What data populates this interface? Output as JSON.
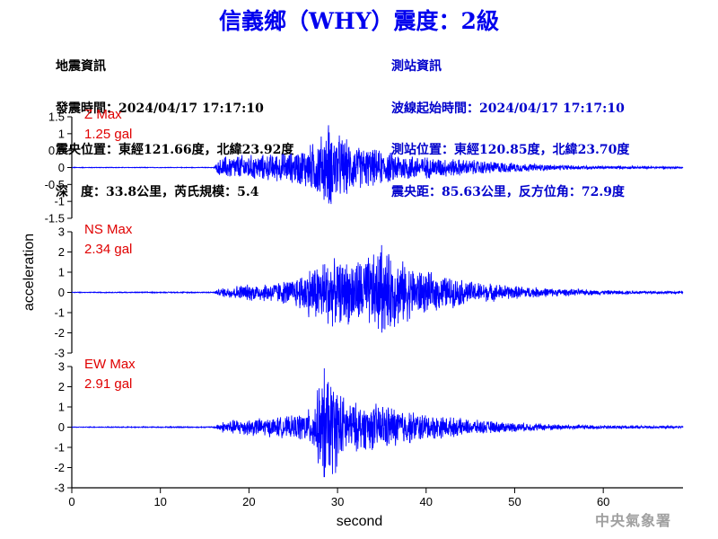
{
  "page": {
    "title": "信義鄉（WHY）震度：2級",
    "footer": "中央氣象署"
  },
  "info_left": {
    "line1": "地震資訊",
    "line2": "發震時間：2024/04/17 17:17:10",
    "line3": "震央位置：東經121.66度，北緯23.92度",
    "line4": "深　度：33.8公里，芮氏規模：5.4"
  },
  "info_right": {
    "line1": "測站資訊",
    "line2": "波線起始時間：2024/04/17 17:17:10",
    "line3": "測站位置：東經120.85度，北緯23.70度",
    "line4": "震央距：85.63公里，反方位角：72.9度"
  },
  "colors": {
    "trace": "#0000ff",
    "max_label": "#e00000",
    "title": "#0000ee",
    "station_info": "#0000cc"
  },
  "chart_data": {
    "type": "line",
    "xlabel": "second",
    "ylabel": "acceleration",
    "xlim": [
      0,
      69
    ],
    "x_ticks": [
      0,
      10,
      20,
      30,
      40,
      50,
      60
    ],
    "grid": false,
    "panels": [
      {
        "component": "Z",
        "label": "Z Max",
        "max_text": "1.25 gal",
        "max_value": 1.25,
        "ylim": [
          -1.5,
          1.5
        ],
        "y_ticks": [
          -1.5,
          -1,
          -0.5,
          0,
          0.5,
          1,
          1.5
        ],
        "y_tick_labels": [
          "-1.5",
          "-1",
          "-0.5",
          "0",
          "0.5",
          "1",
          "1.5"
        ],
        "envelope": {
          "x": [
            0,
            16,
            16.5,
            17,
            19,
            22,
            25,
            27,
            29,
            30,
            32,
            34,
            36,
            40,
            45,
            50,
            55,
            60,
            65,
            69
          ],
          "amp": [
            0.01,
            0.01,
            0.2,
            0.35,
            0.4,
            0.42,
            0.5,
            0.75,
            1.25,
            1.1,
            0.7,
            0.6,
            0.5,
            0.35,
            0.25,
            0.15,
            0.08,
            0.05,
            0.04,
            0.03
          ]
        }
      },
      {
        "component": "NS",
        "label": "NS Max",
        "max_text": "2.34 gal",
        "max_value": 2.34,
        "ylim": [
          -3,
          3
        ],
        "y_ticks": [
          -3,
          -2,
          -1,
          0,
          1,
          2,
          3
        ],
        "y_tick_labels": [
          "-3",
          "-2",
          "-1",
          "0",
          "1",
          "2",
          "3"
        ],
        "envelope": {
          "x": [
            0,
            16,
            17,
            19,
            22,
            25,
            27,
            29,
            30,
            32,
            34,
            35,
            36,
            38,
            40,
            42,
            45,
            50,
            55,
            60,
            65,
            69
          ],
          "amp": [
            0.02,
            0.03,
            0.25,
            0.4,
            0.5,
            0.7,
            1.4,
            1.9,
            1.6,
            1.8,
            2.0,
            2.34,
            2.0,
            1.5,
            1.1,
            0.9,
            0.6,
            0.35,
            0.2,
            0.12,
            0.08,
            0.06
          ]
        }
      },
      {
        "component": "EW",
        "label": "EW Max",
        "max_text": "2.91 gal",
        "max_value": 2.91,
        "ylim": [
          -3,
          3
        ],
        "y_ticks": [
          -3,
          -2,
          -1,
          0,
          1,
          2,
          3
        ],
        "y_tick_labels": [
          "-3",
          "-2",
          "-1",
          "0",
          "1",
          "2",
          "3"
        ],
        "envelope": {
          "x": [
            0,
            16,
            17,
            19,
            22,
            25,
            27,
            28.5,
            29.5,
            31,
            33,
            35,
            37,
            40,
            45,
            50,
            55,
            60,
            65,
            69
          ],
          "amp": [
            0.02,
            0.03,
            0.3,
            0.45,
            0.5,
            0.6,
            1.0,
            2.91,
            2.6,
            1.4,
            1.2,
            1.3,
            1.0,
            0.7,
            0.4,
            0.25,
            0.15,
            0.1,
            0.07,
            0.05
          ]
        }
      }
    ]
  }
}
